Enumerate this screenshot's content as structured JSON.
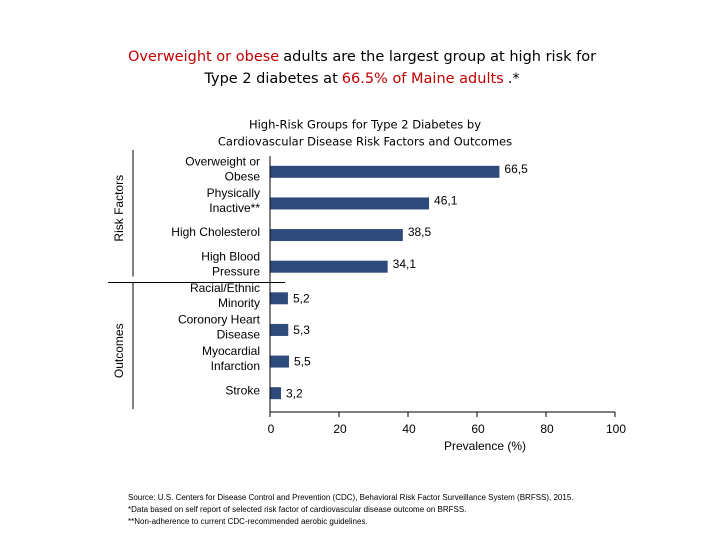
{
  "chart_data": {
    "type": "bar",
    "headline": [
      [
        {
          "text": "Overweight or obese",
          "color": "#c00000"
        },
        {
          "text": "adults are the largest group at high risk for",
          "color": "#000000"
        }
      ],
      [
        {
          "text": "Type 2 diabetes at",
          "color": "#000000"
        },
        {
          "text": "66.5% of Maine adults",
          "color": "#c00000"
        },
        {
          "text": ".*",
          "color": "#000000"
        }
      ]
    ],
    "title": [
      "High-Risk Groups for Type 2 Diabetes by",
      "Cardiovascular Disease Risk Factors and Outcomes"
    ],
    "color": "#2f4b7c",
    "groups": [
      {
        "name": "Risk Factors",
        "categories": [
          [
            "Overweight or",
            "Obese"
          ],
          [
            "Physically",
            "Inactive**"
          ],
          [
            "High Cholesterol"
          ],
          [
            "High Blood",
            "Pressure"
          ]
        ],
        "values": [
          66.5,
          46.1,
          38.5,
          34.1
        ],
        "value_labels": [
          "66,5",
          "46,1",
          "38,5",
          "34,1"
        ]
      },
      {
        "name": "Outcomes",
        "categories": [
          [
            "Racial/Ethnic",
            "Minority"
          ],
          [
            "Coronory Heart",
            "Disease"
          ],
          [
            "Myocardial",
            "Infarction"
          ],
          [
            "Stroke"
          ]
        ],
        "values": [
          5.2,
          5.3,
          5.5,
          3.2
        ],
        "value_labels": [
          "5,2",
          "5,3",
          "5,5",
          "3,2"
        ]
      }
    ],
    "x_label": "Prevalence (%)",
    "xlim": [
      0,
      100
    ],
    "xticks": [
      0,
      20,
      40,
      60,
      80,
      100
    ],
    "footnotes": [
      "Source: U.S. Centers for Disease Control and Prevention (CDC), Behavioral Risk Factor Surveillance System (BRFSS), 2015.",
      "*Data based on self report of selected risk factor of cardiovascular disease outcome on BRFSS.",
      "**Non-adherence to current CDC-recommended aerobic guidelines."
    ]
  }
}
